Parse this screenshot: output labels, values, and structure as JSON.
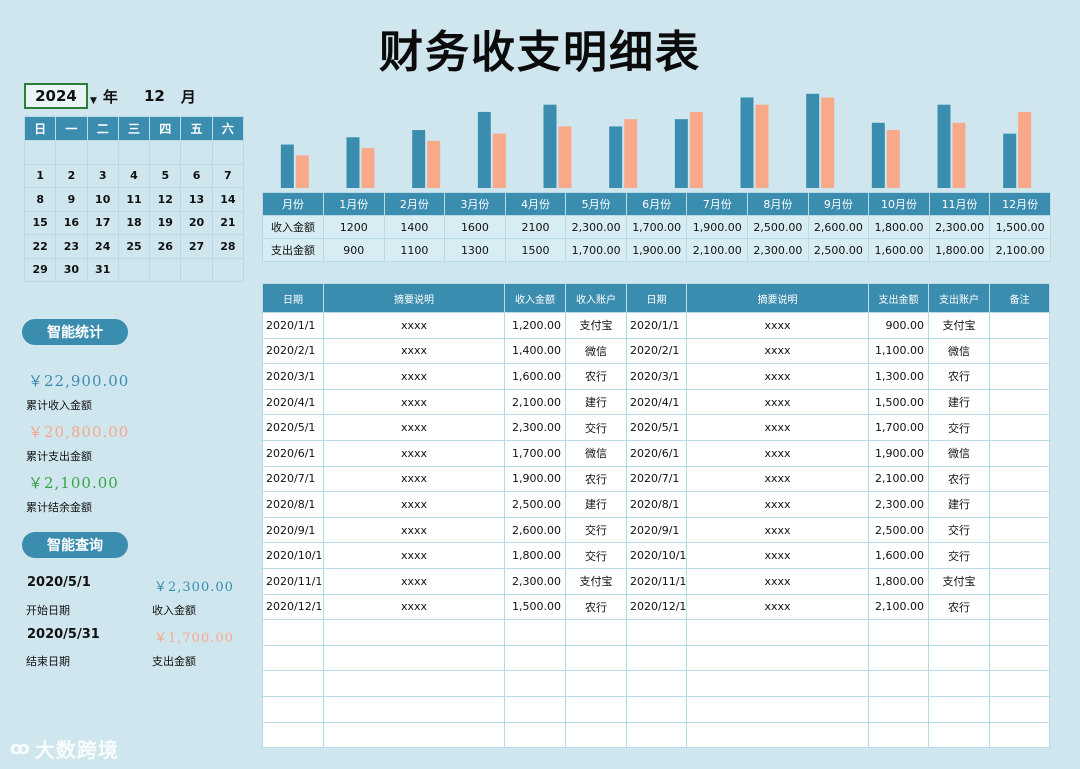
{
  "title": "财务收支明细表",
  "year": "2024",
  "year_suffix": "年",
  "month": "12",
  "month_suffix": "月",
  "calendar": {
    "weekdays": [
      "日",
      "一",
      "二",
      "三",
      "四",
      "五",
      "六"
    ],
    "weeks": [
      [
        "",
        "",
        "",
        "",
        "",
        "",
        ""
      ],
      [
        "1",
        "2",
        "3",
        "4",
        "5",
        "6",
        "7"
      ],
      [
        "8",
        "9",
        "10",
        "11",
        "12",
        "13",
        "14"
      ],
      [
        "15",
        "16",
        "17",
        "18",
        "19",
        "20",
        "21"
      ],
      [
        "22",
        "23",
        "24",
        "25",
        "26",
        "27",
        "28"
      ],
      [
        "29",
        "30",
        "31",
        "",
        "",
        "",
        ""
      ]
    ]
  },
  "stats": {
    "title": "智能统计",
    "income_total": "￥22,900.00",
    "income_label": "累计收入金额",
    "expense_total": "￥20,800.00",
    "expense_label": "累计支出金额",
    "balance_total": "￥2,100.00",
    "balance_label": "累计结余金额"
  },
  "query": {
    "title": "智能查询",
    "start_date": "2020/5/1",
    "start_label": "开始日期",
    "end_date": "2020/5/31",
    "end_label": "结束日期",
    "income_value": "￥2,300.00",
    "income_label": "收入金额",
    "expense_value": "￥1,700.00",
    "expense_label": "支出金额"
  },
  "colors": {
    "income": "#3b8db0",
    "expense": "#f7a98a",
    "balance": "#3aa34a",
    "header": "#3b8db0"
  },
  "chart_data": {
    "type": "bar",
    "categories": [
      "1月份",
      "2月份",
      "3月份",
      "4月份",
      "5月份",
      "6月份",
      "7月份",
      "8月份",
      "9月份",
      "10月份",
      "11月份",
      "12月份"
    ],
    "series": [
      {
        "name": "收入金额",
        "values": [
          1200,
          1400,
          1600,
          2100,
          2300,
          1700,
          1900,
          2500,
          2600,
          1800,
          2300,
          1500
        ]
      },
      {
        "name": "支出金额",
        "values": [
          900,
          1100,
          1300,
          1500,
          1700,
          1900,
          2100,
          2300,
          2500,
          1600,
          1800,
          2100
        ]
      }
    ],
    "ylim": [
      0,
      2650
    ]
  },
  "monthly": {
    "header_label": "月份",
    "months": [
      "1月份",
      "2月份",
      "3月份",
      "4月份",
      "5月份",
      "6月份",
      "7月份",
      "8月份",
      "9月份",
      "10月份",
      "11月份",
      "12月份"
    ],
    "rows": [
      {
        "label": "收入金额",
        "values": [
          "1200",
          "1400",
          "1600",
          "2100",
          "2,300.00",
          "1,700.00",
          "1,900.00",
          "2,500.00",
          "2,600.00",
          "1,800.00",
          "2,300.00",
          "1,500.00"
        ]
      },
      {
        "label": "支出金额",
        "values": [
          "900",
          "1100",
          "1300",
          "1500",
          "1,700.00",
          "1,900.00",
          "2,100.00",
          "2,300.00",
          "2,500.00",
          "1,600.00",
          "1,800.00",
          "2,100.00"
        ]
      }
    ]
  },
  "detail": {
    "headers": [
      "日期",
      "摘要说明",
      "收入金额",
      "收入账户",
      "日期",
      "摘要说明",
      "支出金额",
      "支出账户",
      "备注"
    ],
    "rows": [
      [
        "2020/1/1",
        "xxxx",
        "1,200.00",
        "支付宝",
        "2020/1/1",
        "xxxx",
        "900.00",
        "支付宝",
        ""
      ],
      [
        "2020/2/1",
        "xxxx",
        "1,400.00",
        "微信",
        "2020/2/1",
        "xxxx",
        "1,100.00",
        "微信",
        ""
      ],
      [
        "2020/3/1",
        "xxxx",
        "1,600.00",
        "农行",
        "2020/3/1",
        "xxxx",
        "1,300.00",
        "农行",
        ""
      ],
      [
        "2020/4/1",
        "xxxx",
        "2,100.00",
        "建行",
        "2020/4/1",
        "xxxx",
        "1,500.00",
        "建行",
        ""
      ],
      [
        "2020/5/1",
        "xxxx",
        "2,300.00",
        "交行",
        "2020/5/1",
        "xxxx",
        "1,700.00",
        "交行",
        ""
      ],
      [
        "2020/6/1",
        "xxxx",
        "1,700.00",
        "微信",
        "2020/6/1",
        "xxxx",
        "1,900.00",
        "微信",
        ""
      ],
      [
        "2020/7/1",
        "xxxx",
        "1,900.00",
        "农行",
        "2020/7/1",
        "xxxx",
        "2,100.00",
        "农行",
        ""
      ],
      [
        "2020/8/1",
        "xxxx",
        "2,500.00",
        "建行",
        "2020/8/1",
        "xxxx",
        "2,300.00",
        "建行",
        ""
      ],
      [
        "2020/9/1",
        "xxxx",
        "2,600.00",
        "交行",
        "2020/9/1",
        "xxxx",
        "2,500.00",
        "交行",
        ""
      ],
      [
        "2020/10/1",
        "xxxx",
        "1,800.00",
        "交行",
        "2020/10/1",
        "xxxx",
        "1,600.00",
        "交行",
        ""
      ],
      [
        "2020/11/1",
        "xxxx",
        "2,300.00",
        "支付宝",
        "2020/11/1",
        "xxxx",
        "1,800.00",
        "支付宝",
        ""
      ],
      [
        "2020/12/1",
        "xxxx",
        "1,500.00",
        "农行",
        "2020/12/1",
        "xxxx",
        "2,100.00",
        "农行",
        ""
      ],
      [
        "",
        "",
        "",
        "",
        "",
        "",
        "",
        "",
        ""
      ],
      [
        "",
        "",
        "",
        "",
        "",
        "",
        "",
        "",
        ""
      ],
      [
        "",
        "",
        "",
        "",
        "",
        "",
        "",
        "",
        ""
      ],
      [
        "",
        "",
        "",
        "",
        "",
        "",
        "",
        "",
        ""
      ],
      [
        "",
        "",
        "",
        "",
        "",
        "",
        "",
        "",
        ""
      ]
    ]
  },
  "watermark": "大数跨境"
}
